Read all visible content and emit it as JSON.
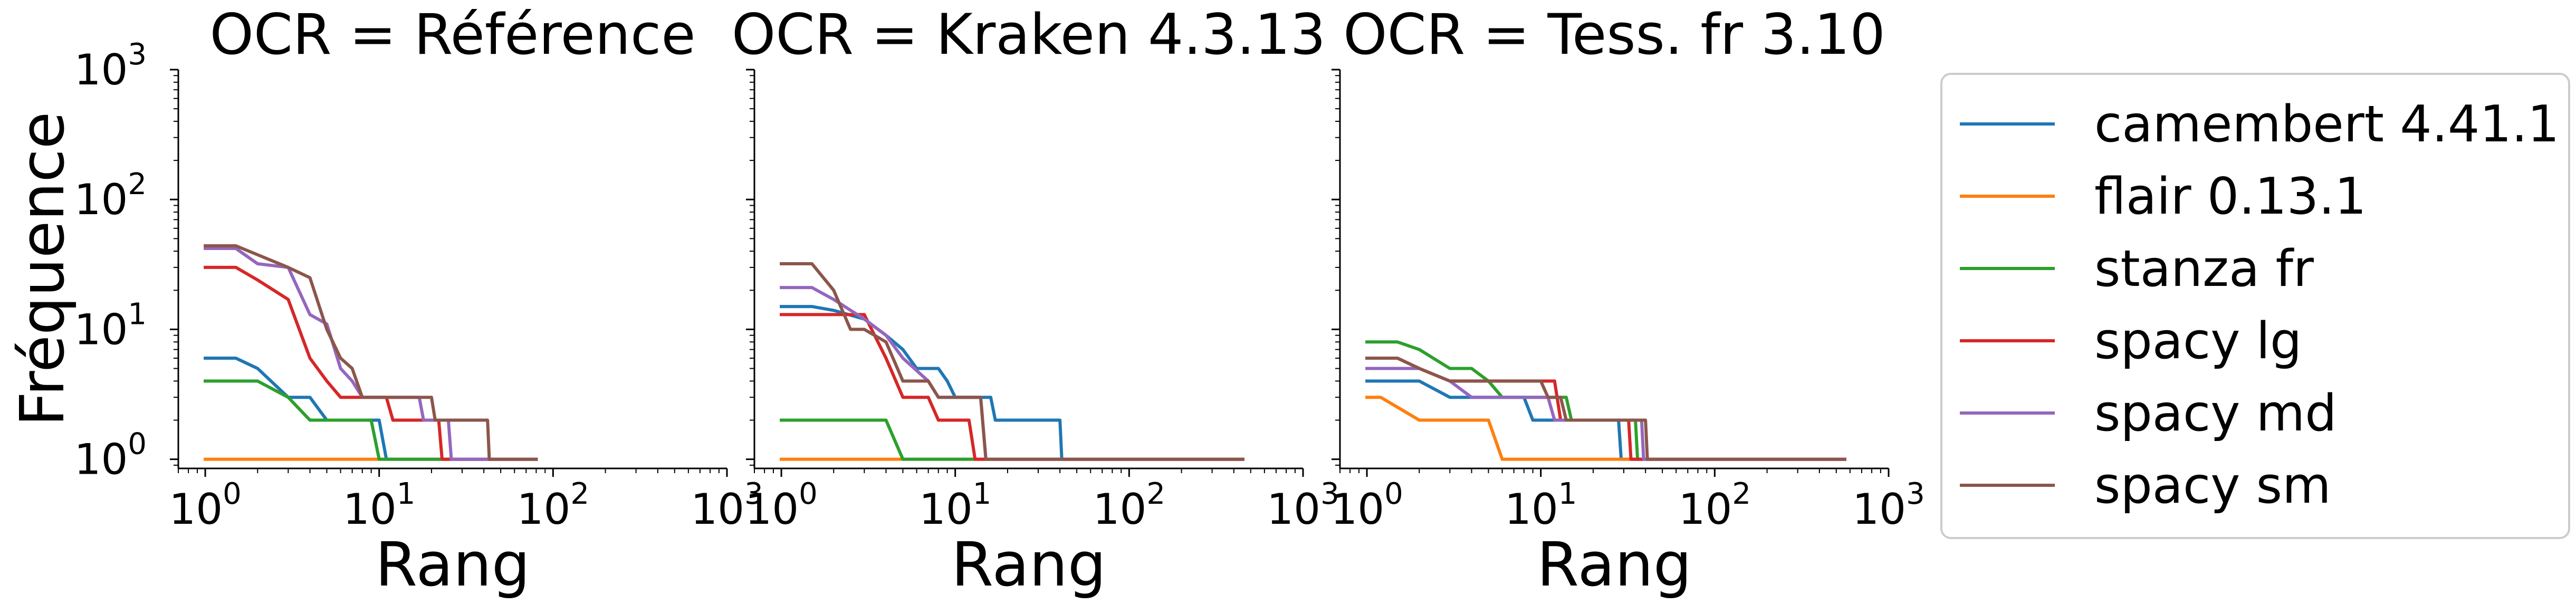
{
  "chart_data": [
    {
      "type": "line",
      "title": "OCR = Référence",
      "xlabel": "Rang",
      "ylabel": "Fréquence",
      "xscale": "log",
      "yscale": "log",
      "xlim": [
        0.7,
        1000
      ],
      "ylim": [
        0.85,
        1000
      ],
      "xticks": [
        1,
        10,
        100,
        1000
      ],
      "yticks": [
        1,
        10,
        100,
        1000
      ],
      "series": [
        {
          "name": "camembert 4.41.1",
          "color": "#1f77b4",
          "points": [
            [
              1,
              6
            ],
            [
              1.5,
              6
            ],
            [
              2,
              5
            ],
            [
              3,
              3
            ],
            [
              4,
              3
            ],
            [
              5,
              2
            ],
            [
              10,
              2
            ],
            [
              11,
              1
            ],
            [
              80,
              1
            ]
          ]
        },
        {
          "name": "flair 0.13.1",
          "color": "#ff7f0e",
          "points": [
            [
              1,
              1
            ],
            [
              80,
              1
            ]
          ]
        },
        {
          "name": "stanza fr",
          "color": "#2ca02c",
          "points": [
            [
              1,
              4
            ],
            [
              2,
              4
            ],
            [
              3,
              3
            ],
            [
              4,
              2
            ],
            [
              9,
              2
            ],
            [
              10,
              1
            ],
            [
              80,
              1
            ]
          ]
        },
        {
          "name": "spacy lg",
          "color": "#d62728",
          "points": [
            [
              1,
              30
            ],
            [
              1.5,
              30
            ],
            [
              2,
              24
            ],
            [
              3,
              17
            ],
            [
              4,
              6
            ],
            [
              5,
              4
            ],
            [
              6,
              3
            ],
            [
              11,
              3
            ],
            [
              12,
              2
            ],
            [
              22,
              2
            ],
            [
              23,
              1
            ],
            [
              80,
              1
            ]
          ]
        },
        {
          "name": "spacy md",
          "color": "#9467bd",
          "points": [
            [
              1,
              42
            ],
            [
              1.5,
              42
            ],
            [
              2,
              32
            ],
            [
              3,
              30
            ],
            [
              4,
              13
            ],
            [
              5,
              11
            ],
            [
              6,
              5
            ],
            [
              7,
              4
            ],
            [
              8,
              3
            ],
            [
              17,
              3
            ],
            [
              18,
              2
            ],
            [
              25,
              2
            ],
            [
              26,
              1
            ],
            [
              80,
              1
            ]
          ]
        },
        {
          "name": "spacy sm",
          "color": "#8c564b",
          "points": [
            [
              1,
              44
            ],
            [
              1.5,
              44
            ],
            [
              3,
              30
            ],
            [
              4,
              25
            ],
            [
              5,
              10
            ],
            [
              6,
              6
            ],
            [
              7,
              5
            ],
            [
              8,
              3
            ],
            [
              20,
              3
            ],
            [
              21,
              2
            ],
            [
              42,
              2
            ],
            [
              43,
              1
            ],
            [
              80,
              1
            ]
          ]
        }
      ]
    },
    {
      "type": "line",
      "title": "OCR = Kraken 4.3.13",
      "xlabel": "Rang",
      "ylabel": "",
      "xscale": "log",
      "yscale": "log",
      "xlim": [
        0.7,
        1000
      ],
      "ylim": [
        0.85,
        1000
      ],
      "xticks": [
        1,
        10,
        100,
        1000
      ],
      "yticks": [
        1,
        10,
        100,
        1000
      ],
      "series": [
        {
          "name": "camembert 4.41.1",
          "color": "#1f77b4",
          "points": [
            [
              1,
              15
            ],
            [
              1.5,
              15
            ],
            [
              2,
              14
            ],
            [
              3,
              12
            ],
            [
              4,
              9
            ],
            [
              5,
              7
            ],
            [
              6,
              5
            ],
            [
              8,
              5
            ],
            [
              9,
              4
            ],
            [
              10,
              3
            ],
            [
              16,
              3
            ],
            [
              17,
              2
            ],
            [
              40,
              2
            ],
            [
              41,
              1
            ],
            [
              450,
              1
            ]
          ]
        },
        {
          "name": "flair 0.13.1",
          "color": "#ff7f0e",
          "points": [
            [
              1,
              1
            ],
            [
              450,
              1
            ]
          ]
        },
        {
          "name": "stanza fr",
          "color": "#2ca02c",
          "points": [
            [
              1,
              2
            ],
            [
              4,
              2
            ],
            [
              5,
              1
            ],
            [
              450,
              1
            ]
          ]
        },
        {
          "name": "spacy lg",
          "color": "#d62728",
          "points": [
            [
              1,
              13
            ],
            [
              3,
              13
            ],
            [
              4,
              6
            ],
            [
              5,
              3
            ],
            [
              7,
              3
            ],
            [
              8,
              2
            ],
            [
              12,
              2
            ],
            [
              13,
              1
            ],
            [
              450,
              1
            ]
          ]
        },
        {
          "name": "spacy md",
          "color": "#9467bd",
          "points": [
            [
              1,
              21
            ],
            [
              1.5,
              21
            ],
            [
              2,
              17
            ],
            [
              3,
              12
            ],
            [
              4,
              9
            ],
            [
              5,
              6
            ],
            [
              7,
              4
            ],
            [
              8,
              3
            ],
            [
              14,
              3
            ],
            [
              15,
              1
            ],
            [
              450,
              1
            ]
          ]
        },
        {
          "name": "spacy sm",
          "color": "#8c564b",
          "points": [
            [
              1,
              32
            ],
            [
              1.5,
              32
            ],
            [
              2,
              20
            ],
            [
              2.5,
              10
            ],
            [
              3,
              10
            ],
            [
              4,
              8
            ],
            [
              5,
              4
            ],
            [
              7,
              4
            ],
            [
              8,
              3
            ],
            [
              14,
              3
            ],
            [
              15,
              1
            ],
            [
              450,
              1
            ]
          ]
        }
      ]
    },
    {
      "type": "line",
      "title": "OCR = Tess. fr 3.10",
      "xlabel": "Rang",
      "ylabel": "",
      "xscale": "log",
      "yscale": "log",
      "xlim": [
        0.7,
        1000
      ],
      "ylim": [
        0.85,
        1000
      ],
      "xticks": [
        1,
        10,
        100,
        1000
      ],
      "yticks": [
        1,
        10,
        100,
        1000
      ],
      "series": [
        {
          "name": "camembert 4.41.1",
          "color": "#1f77b4",
          "points": [
            [
              1,
              4
            ],
            [
              2,
              4
            ],
            [
              3,
              3
            ],
            [
              8,
              3
            ],
            [
              9,
              2
            ],
            [
              28,
              2
            ],
            [
              29,
              1
            ],
            [
              560,
              1
            ]
          ]
        },
        {
          "name": "flair 0.13.1",
          "color": "#ff7f0e",
          "points": [
            [
              1,
              3
            ],
            [
              1.2,
              3
            ],
            [
              2,
              2
            ],
            [
              5,
              2
            ],
            [
              6,
              1
            ],
            [
              560,
              1
            ]
          ]
        },
        {
          "name": "stanza fr",
          "color": "#2ca02c",
          "points": [
            [
              1,
              8
            ],
            [
              1.5,
              8
            ],
            [
              2,
              7
            ],
            [
              3,
              5
            ],
            [
              4,
              5
            ],
            [
              5,
              4
            ],
            [
              6,
              3
            ],
            [
              14,
              3
            ],
            [
              15,
              2
            ],
            [
              35,
              2
            ],
            [
              36,
              1
            ],
            [
              560,
              1
            ]
          ]
        },
        {
          "name": "spacy lg",
          "color": "#d62728",
          "points": [
            [
              1,
              6
            ],
            [
              1.5,
              6
            ],
            [
              2,
              5
            ],
            [
              3,
              4
            ],
            [
              12,
              4
            ],
            [
              13,
              2
            ],
            [
              32,
              2
            ],
            [
              33,
              1
            ],
            [
              560,
              1
            ]
          ]
        },
        {
          "name": "spacy md",
          "color": "#9467bd",
          "points": [
            [
              1,
              5
            ],
            [
              1.5,
              5
            ],
            [
              2,
              5
            ],
            [
              3,
              4
            ],
            [
              4,
              3
            ],
            [
              11,
              3
            ],
            [
              12,
              2
            ],
            [
              38,
              2
            ],
            [
              39,
              1
            ],
            [
              560,
              1
            ]
          ]
        },
        {
          "name": "spacy sm",
          "color": "#8c564b",
          "points": [
            [
              1,
              6
            ],
            [
              1.5,
              6
            ],
            [
              2,
              5
            ],
            [
              3,
              4
            ],
            [
              10,
              4
            ],
            [
              11,
              3
            ],
            [
              13,
              3
            ],
            [
              14,
              2
            ],
            [
              40,
              2
            ],
            [
              41,
              1
            ],
            [
              560,
              1
            ]
          ]
        }
      ]
    }
  ],
  "legend": {
    "placement": "right",
    "entries": [
      {
        "label": "camembert 4.41.1",
        "color": "#1f77b4"
      },
      {
        "label": "flair 0.13.1",
        "color": "#ff7f0e"
      },
      {
        "label": "stanza fr",
        "color": "#2ca02c"
      },
      {
        "label": "spacy lg",
        "color": "#d62728"
      },
      {
        "label": "spacy md",
        "color": "#9467bd"
      },
      {
        "label": "spacy sm",
        "color": "#8c564b"
      }
    ]
  }
}
